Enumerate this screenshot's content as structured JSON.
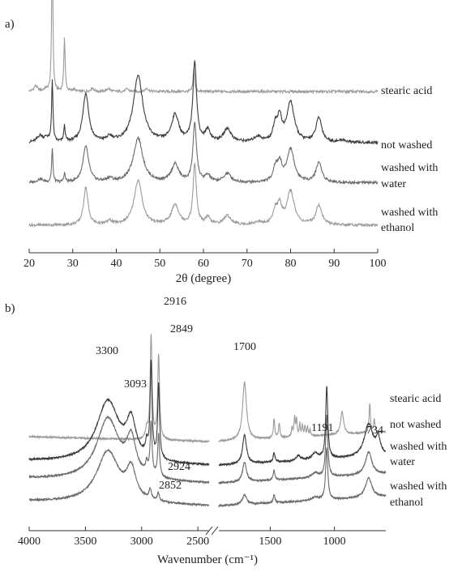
{
  "chart_data": [
    {
      "type": "line",
      "panel_label": "a)",
      "xlabel": "2θ (degree)",
      "xlim": [
        20,
        100
      ],
      "xticks": [
        20,
        30,
        40,
        50,
        60,
        70,
        80,
        90,
        100
      ],
      "y_axis_shown": false,
      "series": [
        {
          "name": "stearic acid",
          "color": "#9a9a9a",
          "offset": 3.0,
          "peaks": [
            [
              21.5,
              0.12,
              0.5
            ],
            [
              23.8,
              0.05,
              0.5
            ],
            [
              25.3,
              3.5,
              0.16
            ],
            [
              28.1,
              1.2,
              0.18
            ],
            [
              30.2,
              0.05,
              0.3
            ],
            [
              34.5,
              0.08,
              0.4
            ],
            [
              38.2,
              0.07,
              0.4
            ],
            [
              42.5,
              0.06,
              0.4
            ],
            [
              47.0,
              0.08,
              0.4
            ],
            [
              57.8,
              0.5,
              0.2
            ]
          ]
        },
        {
          "name": "not washed",
          "color": "#3a3a3a",
          "offset": 1.85,
          "peaks": [
            [
              22.5,
              0.15,
              0.8
            ],
            [
              24.0,
              0.1,
              0.5
            ],
            [
              25.3,
              1.4,
              0.18
            ],
            [
              28.1,
              0.35,
              0.2
            ],
            [
              33.0,
              1.1,
              0.8
            ],
            [
              38.5,
              0.1,
              0.8
            ],
            [
              45.0,
              1.5,
              1.3
            ],
            [
              53.5,
              0.6,
              1.0
            ],
            [
              58.0,
              1.8,
              0.5
            ],
            [
              61.0,
              0.25,
              0.7
            ],
            [
              65.5,
              0.3,
              1.0
            ],
            [
              72.5,
              0.12,
              1.0
            ],
            [
              76.5,
              0.35,
              0.6
            ],
            [
              77.5,
              0.5,
              0.6
            ],
            [
              80.0,
              0.9,
              1.0
            ],
            [
              86.5,
              0.55,
              0.8
            ],
            [
              92.0,
              0.05,
              0.8
            ]
          ]
        },
        {
          "name": "washed with water",
          "color": "#6a6a6a",
          "offset": 0.95,
          "peaks": [
            [
              22.5,
              0.08,
              0.8
            ],
            [
              25.3,
              0.75,
              0.18
            ],
            [
              28.1,
              0.2,
              0.2
            ],
            [
              33.0,
              0.8,
              0.8
            ],
            [
              38.5,
              0.08,
              0.8
            ],
            [
              45.0,
              1.0,
              1.3
            ],
            [
              53.5,
              0.4,
              1.0
            ],
            [
              58.0,
              1.3,
              0.5
            ],
            [
              61.0,
              0.15,
              0.7
            ],
            [
              65.5,
              0.2,
              1.0
            ],
            [
              76.5,
              0.3,
              0.6
            ],
            [
              77.5,
              0.4,
              0.6
            ],
            [
              80.0,
              0.75,
              1.0
            ],
            [
              86.5,
              0.45,
              0.8
            ]
          ]
        },
        {
          "name": "washed with ethanol",
          "color": "#9a9a9a",
          "offset": 0.0,
          "peaks": [
            [
              33.0,
              0.85,
              0.6
            ],
            [
              38.5,
              0.08,
              0.8
            ],
            [
              45.0,
              1.0,
              1.1
            ],
            [
              53.5,
              0.45,
              1.0
            ],
            [
              58.0,
              1.35,
              0.45
            ],
            [
              61.0,
              0.15,
              0.7
            ],
            [
              65.5,
              0.2,
              1.0
            ],
            [
              72.5,
              0.06,
              1.0
            ],
            [
              76.5,
              0.3,
              0.6
            ],
            [
              77.5,
              0.4,
              0.6
            ],
            [
              80.0,
              0.75,
              1.0
            ],
            [
              86.5,
              0.45,
              0.8
            ]
          ]
        }
      ]
    },
    {
      "type": "line",
      "panel_label": "b)",
      "xlabel": "Wavenumber (cm⁻¹)",
      "x_reversed": true,
      "x_broken": true,
      "segments": [
        {
          "xlim": [
            4000,
            2400
          ],
          "xticks": [
            4000,
            3500,
            3000,
            2500
          ]
        },
        {
          "xlim": [
            1900,
            600
          ],
          "xticks": [
            1500,
            1000
          ]
        }
      ],
      "y_axis_shown": false,
      "peak_labels": [
        "3300",
        "3093",
        "2916",
        "2849",
        "1700",
        "1191",
        "734",
        "2924",
        "2852"
      ],
      "series": [
        {
          "name": "stearic acid",
          "color": "#9a9a9a",
          "offset": 2.0,
          "peaks": [
            [
              2955,
              0.3,
              12
            ],
            [
              2916,
              3.2,
              10
            ],
            [
              2849,
              2.6,
              10
            ],
            [
              1700,
              1.8,
              18
            ],
            [
              1470,
              0.6,
              6
            ],
            [
              1430,
              0.45,
              6
            ],
            [
              1330,
              0.3,
              5
            ],
            [
              1310,
              0.6,
              6
            ],
            [
              1295,
              0.5,
              5
            ],
            [
              1270,
              0.4,
              5
            ],
            [
              1250,
              0.35,
              5
            ],
            [
              1230,
              0.3,
              5
            ],
            [
              1210,
              0.3,
              5
            ],
            [
              1190,
              0.2,
              5
            ],
            [
              940,
              0.7,
              14
            ],
            [
              725,
              0.9,
              6
            ],
            [
              690,
              0.4,
              6
            ]
          ]
        },
        {
          "name": "not washed",
          "color": "#3a3a3a",
          "offset": 1.25,
          "peaks": [
            [
              3300,
              1.9,
              120
            ],
            [
              3093,
              1.1,
              50
            ],
            [
              2955,
              0.4,
              12
            ],
            [
              2916,
              2.9,
              10
            ],
            [
              2849,
              2.3,
              10
            ],
            [
              1700,
              0.9,
              18
            ],
            [
              1470,
              0.3,
              8
            ],
            [
              1280,
              0.15,
              20
            ],
            [
              1150,
              0.2,
              30
            ],
            [
              1060,
              2.2,
              10
            ],
            [
              734,
              1.0,
              40
            ],
            [
              660,
              0.5,
              20
            ]
          ]
        },
        {
          "name": "washed with water",
          "color": "#6a6a6a",
          "offset": 0.7,
          "peaks": [
            [
              3300,
              1.9,
              120
            ],
            [
              3093,
              1.1,
              50
            ],
            [
              2955,
              0.3,
              12
            ],
            [
              2916,
              1.6,
              10
            ],
            [
              2849,
              1.3,
              10
            ],
            [
              1700,
              0.6,
              18
            ],
            [
              1470,
              0.3,
              8
            ],
            [
              1150,
              0.15,
              30
            ],
            [
              1060,
              1.9,
              10
            ],
            [
              734,
              0.7,
              30
            ]
          ]
        },
        {
          "name": "washed with ethanol",
          "color": "#6a6a6a",
          "offset": 0.0,
          "peaks": [
            [
              3300,
              1.6,
              120
            ],
            [
              3093,
              0.9,
              50
            ],
            [
              2924,
              0.3,
              12
            ],
            [
              2852,
              0.25,
              10
            ],
            [
              1700,
              0.3,
              20
            ],
            [
              1470,
              0.25,
              8
            ],
            [
              1150,
              0.1,
              30
            ],
            [
              1060,
              1.6,
              10
            ],
            [
              734,
              0.6,
              30
            ]
          ]
        }
      ]
    }
  ]
}
